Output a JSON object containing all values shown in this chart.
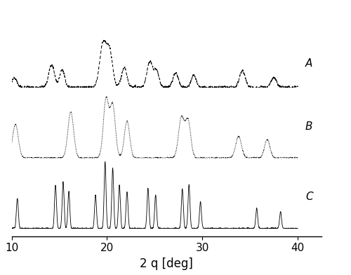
{
  "x_min": 10,
  "x_max": 40,
  "xlabel": "2 q [deg]",
  "label_fontsize": 11,
  "xlabel_fontsize": 12,
  "tick_fontsize": 11,
  "offsets": [
    1.8,
    0.9,
    0.0
  ],
  "background_color": "#ffffff",
  "line_color": "#000000",
  "peaks_A": [
    10.3,
    14.2,
    15.3,
    19.6,
    20.3,
    21.8,
    24.5,
    25.2,
    27.2,
    29.1,
    34.2,
    37.5
  ],
  "heights_A": [
    0.12,
    0.28,
    0.22,
    0.55,
    0.42,
    0.25,
    0.32,
    0.2,
    0.18,
    0.15,
    0.2,
    0.12
  ],
  "widths_A": [
    0.25,
    0.3,
    0.25,
    0.35,
    0.3,
    0.28,
    0.3,
    0.25,
    0.28,
    0.25,
    0.3,
    0.28
  ],
  "peaks_B": [
    10.4,
    16.2,
    19.9,
    20.6,
    22.1,
    27.8,
    28.5,
    33.8,
    36.8
  ],
  "heights_B": [
    0.55,
    0.75,
    0.95,
    0.85,
    0.6,
    0.65,
    0.6,
    0.35,
    0.3
  ],
  "widths_B": [
    0.3,
    0.3,
    0.28,
    0.28,
    0.28,
    0.3,
    0.28,
    0.3,
    0.28
  ],
  "peaks_C": [
    10.6,
    14.6,
    15.4,
    16.0,
    18.8,
    19.8,
    20.6,
    21.3,
    22.1,
    24.3,
    25.1,
    27.9,
    28.6,
    29.8,
    35.7,
    38.2
  ],
  "heights_C": [
    0.45,
    0.65,
    0.7,
    0.55,
    0.5,
    1.0,
    0.9,
    0.65,
    0.55,
    0.6,
    0.5,
    0.6,
    0.65,
    0.4,
    0.3,
    0.25
  ],
  "widths_C": [
    0.1,
    0.1,
    0.1,
    0.1,
    0.1,
    0.1,
    0.1,
    0.1,
    0.1,
    0.1,
    0.1,
    0.1,
    0.1,
    0.1,
    0.1,
    0.1
  ],
  "noise_A": 0.018,
  "noise_B": 0.012,
  "noise_C": 0.01,
  "scale_A": 0.6,
  "scale_B": 0.78,
  "scale_C": 0.85
}
